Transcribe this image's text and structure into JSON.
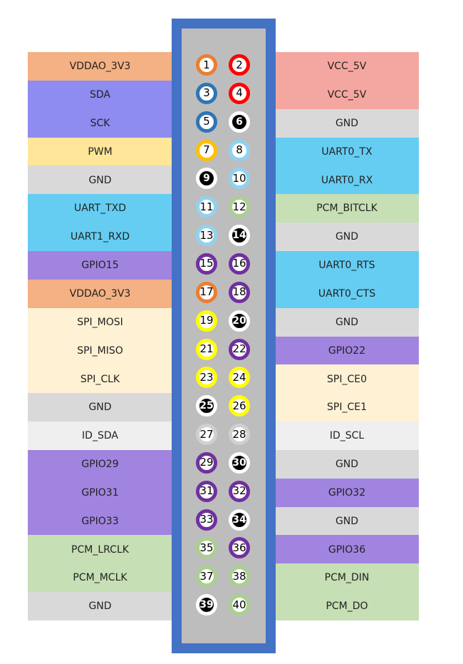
{
  "colors": {
    "orange": "#f4b183",
    "red": "#f4a7a0",
    "blue": "#8e8cf0",
    "yellow": "#ffe699",
    "gray": "#d9d9d9",
    "lightblue": "#65cdf2",
    "purple": "#a184e0",
    "cream": "#fff1d4",
    "palegray": "#efefef",
    "green": "#c6dfb4",
    "header_frame": "#4472c4",
    "header_inner": "#bdbdbd"
  },
  "left_labels": [
    {
      "text": "VDDAO_3V3",
      "color": "orange"
    },
    {
      "text": "SDA",
      "color": "blue"
    },
    {
      "text": "SCK",
      "color": "blue"
    },
    {
      "text": "PWM",
      "color": "yellow"
    },
    {
      "text": "GND",
      "color": "gray"
    },
    {
      "text": "UART_TXD",
      "color": "lightblue"
    },
    {
      "text": "UART1_RXD",
      "color": "lightblue"
    },
    {
      "text": "GPIO15",
      "color": "purple"
    },
    {
      "text": "VDDAO_3V3",
      "color": "orange"
    },
    {
      "text": "SPI_MOSI",
      "color": "cream"
    },
    {
      "text": "SPI_MISO",
      "color": "cream"
    },
    {
      "text": "SPI_CLK",
      "color": "cream"
    },
    {
      "text": "GND",
      "color": "gray"
    },
    {
      "text": "ID_SDA",
      "color": "palegray"
    },
    {
      "text": "GPIO29",
      "color": "purple"
    },
    {
      "text": "GPIO31",
      "color": "purple"
    },
    {
      "text": "GPIO33",
      "color": "purple"
    },
    {
      "text": "PCM_LRCLK",
      "color": "green"
    },
    {
      "text": "PCM_MCLK",
      "color": "green"
    },
    {
      "text": "GND",
      "color": "gray"
    }
  ],
  "right_labels": [
    {
      "text": "VCC_5V",
      "color": "red"
    },
    {
      "text": "VCC_5V",
      "color": "red"
    },
    {
      "text": "GND",
      "color": "gray"
    },
    {
      "text": "UART0_TX",
      "color": "lightblue"
    },
    {
      "text": "UART0_RX",
      "color": "lightblue"
    },
    {
      "text": "PCM_BITCLK",
      "color": "green"
    },
    {
      "text": "GND",
      "color": "gray"
    },
    {
      "text": "UART0_RTS",
      "color": "lightblue"
    },
    {
      "text": "UART0_CTS",
      "color": "lightblue"
    },
    {
      "text": "GND",
      "color": "gray"
    },
    {
      "text": "GPIO22",
      "color": "purple"
    },
    {
      "text": "SPI_CE0",
      "color": "cream"
    },
    {
      "text": "SPI_CE1",
      "color": "cream"
    },
    {
      "text": "ID_SCL",
      "color": "palegray"
    },
    {
      "text": "GND",
      "color": "gray"
    },
    {
      "text": "GPIO32",
      "color": "purple"
    },
    {
      "text": "GND",
      "color": "gray"
    },
    {
      "text": "GPIO36",
      "color": "purple"
    },
    {
      "text": "PCM_DIN",
      "color": "green"
    },
    {
      "text": "PCM_DO",
      "color": "green"
    }
  ],
  "pin_styles": {
    "orange": {
      "ring": "#ed7d31",
      "fill": "#ffffff",
      "text": "#000000"
    },
    "red": {
      "ring": "#ff0000",
      "fill": "#ffffff",
      "text": "#000000"
    },
    "blue": {
      "ring": "#2e75b6",
      "fill": "#ffffff",
      "text": "#000000"
    },
    "black": {
      "ring": "#ffffff",
      "fill": "#000000",
      "text": "#ffffff"
    },
    "amber": {
      "ring": "#ffc000",
      "fill": "#ffffff",
      "text": "#000000"
    },
    "lightblue": {
      "ring": "#8fd3f0",
      "fill": "#ffffff",
      "text": "#000000"
    },
    "green": {
      "ring": "#a9d18e",
      "fill": "#ffffff",
      "text": "#000000"
    },
    "purple": {
      "ring": "#7030a0",
      "fill": "#ffffff",
      "text": "#000000"
    },
    "yellow": {
      "ring": "#ffff00",
      "fill": "#ffffff",
      "text": "#000000"
    },
    "gray": {
      "ring": "#d0d0d0",
      "fill": "#ffffff",
      "text": "#000000"
    }
  },
  "pins": [
    {
      "num": "1",
      "style": "orange"
    },
    {
      "num": "2",
      "style": "red"
    },
    {
      "num": "3",
      "style": "blue"
    },
    {
      "num": "4",
      "style": "red"
    },
    {
      "num": "5",
      "style": "blue"
    },
    {
      "num": "6",
      "style": "black"
    },
    {
      "num": "7",
      "style": "amber"
    },
    {
      "num": "8",
      "style": "lightblue"
    },
    {
      "num": "9",
      "style": "black"
    },
    {
      "num": "10",
      "style": "lightblue"
    },
    {
      "num": "11",
      "style": "lightblue"
    },
    {
      "num": "12",
      "style": "green"
    },
    {
      "num": "13",
      "style": "lightblue"
    },
    {
      "num": "14",
      "style": "black"
    },
    {
      "num": "15",
      "style": "purple"
    },
    {
      "num": "16",
      "style": "purple"
    },
    {
      "num": "17",
      "style": "orange"
    },
    {
      "num": "18",
      "style": "purple"
    },
    {
      "num": "19",
      "style": "yellow"
    },
    {
      "num": "20",
      "style": "black"
    },
    {
      "num": "21",
      "style": "yellow"
    },
    {
      "num": "22",
      "style": "purple"
    },
    {
      "num": "23",
      "style": "yellow"
    },
    {
      "num": "24",
      "style": "yellow"
    },
    {
      "num": "25",
      "style": "black"
    },
    {
      "num": "26",
      "style": "yellow"
    },
    {
      "num": "27",
      "style": "gray"
    },
    {
      "num": "28",
      "style": "gray"
    },
    {
      "num": "29",
      "style": "purple"
    },
    {
      "num": "30",
      "style": "black"
    },
    {
      "num": "31",
      "style": "purple"
    },
    {
      "num": "32",
      "style": "purple"
    },
    {
      "num": "33",
      "style": "purple"
    },
    {
      "num": "34",
      "style": "black"
    },
    {
      "num": "35",
      "style": "green"
    },
    {
      "num": "36",
      "style": "purple"
    },
    {
      "num": "37",
      "style": "green"
    },
    {
      "num": "38",
      "style": "green"
    },
    {
      "num": "39",
      "style": "black"
    },
    {
      "num": "40",
      "style": "green"
    }
  ]
}
